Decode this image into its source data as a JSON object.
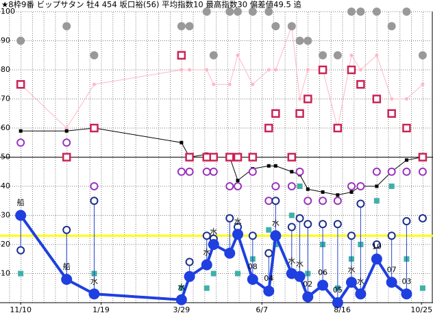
{
  "chart_data": {
    "type": "line",
    "title": "★8枠9番 ビップサタン 牡4 454 坂口裕(56) 平均指数10 最高指数30 偏差値49.5 追",
    "x": [
      0,
      40,
      64,
      140,
      147,
      162,
      168,
      182,
      189,
      202,
      216,
      222,
      236,
      243,
      250,
      263,
      276,
      288,
      296,
      310,
      323,
      336,
      350
    ],
    "xlim": [
      -18,
      359
    ],
    "xticks": [
      {
        "value": 0,
        "label": "11/10"
      },
      {
        "value": 70,
        "label": "1/19"
      },
      {
        "value": 140,
        "label": "3/29"
      },
      {
        "value": 210,
        "label": "6/7"
      },
      {
        "value": 280,
        "label": "8/16"
      },
      {
        "value": 349,
        "label": "10/25"
      }
    ],
    "ylim": [
      0,
      100
    ],
    "yticks": [
      10,
      20,
      30,
      40,
      50,
      60,
      70,
      80,
      90,
      100
    ],
    "grid": true,
    "reference_lines": [
      {
        "value": 23,
        "color": "#ffff00",
        "width": 3
      },
      {
        "value": 50,
        "color": "#000000",
        "width": 1
      }
    ],
    "series": [
      {
        "color": "#ffb6c6",
        "line": 1,
        "marker": "dot",
        "size": 2.5,
        "values": [
          75,
          60,
          75,
          80,
          80,
          80,
          75,
          75,
          85,
          75,
          80,
          80,
          95,
          70,
          80,
          80,
          60,
          85,
          80,
          85,
          70,
          70,
          75
        ]
      },
      {
        "color": "#000000",
        "line": 1,
        "marker": "square",
        "size": 2.5,
        "values": [
          59,
          59,
          60,
          55,
          50,
          51,
          50,
          50,
          42,
          46,
          47,
          47,
          45,
          44,
          39,
          38,
          37,
          38,
          40,
          40,
          45,
          49,
          50
        ]
      },
      {
        "color": "#999999",
        "line": 0,
        "marker": "dot",
        "size": 6,
        "values": [
          90,
          95,
          85,
          95,
          95,
          100,
          85,
          100,
          100,
          100,
          100,
          95,
          95,
          90,
          90,
          85,
          85,
          100,
          100,
          100,
          95,
          100,
          85
        ]
      },
      {
        "color": "#9933bb",
        "line": 0,
        "marker": "circle",
        "size": 5,
        "values": [
          55,
          55,
          40,
          45,
          45,
          45,
          45,
          40,
          40,
          45,
          35,
          40,
          40,
          45,
          35,
          35,
          35,
          40,
          40,
          45,
          45,
          45,
          45
        ]
      },
      {
        "color": "#cc2255",
        "line": 0,
        "marker": "hollow-square",
        "size": 5,
        "values": [
          75,
          50,
          60,
          85,
          50,
          50,
          50,
          50,
          50,
          50,
          60,
          65,
          50,
          65,
          70,
          80,
          60,
          80,
          75,
          70,
          65,
          60,
          50
        ]
      },
      {
        "color": "#40b0a8",
        "line": 0,
        "marker": "square",
        "size": 4,
        "values": [
          10,
          25,
          10,
          5,
          null,
          5,
          10,
          null,
          10,
          15,
          25,
          20,
          30,
          40,
          10,
          20,
          5,
          15,
          20,
          35,
          40,
          15,
          5
        ]
      },
      {
        "color": "#1a2d8c",
        "line": 0,
        "marker": "circle",
        "size": 5,
        "stem_to": 7,
        "values": [
          18,
          25,
          35,
          null,
          14,
          23,
          22,
          29,
          26,
          23,
          17,
          35,
          26,
          29,
          27,
          27,
          27,
          23,
          34,
          20,
          23,
          28,
          29
        ]
      },
      {
        "color": "#1f3fe0",
        "line": 4,
        "marker": "dot",
        "size": 8,
        "values": [
          30,
          8,
          3,
          1,
          9,
          13,
          20,
          17,
          23.5,
          8,
          4,
          23,
          10,
          9,
          2,
          6,
          0,
          7,
          3,
          15,
          7,
          3,
          null
        ]
      }
    ],
    "point_labels": [
      "船",
      "船",
      "水",
      "水",
      null,
      "水",
      "水",
      null,
      "水",
      "08",
      "04",
      "水",
      "水",
      "水",
      "02",
      "06",
      "05",
      "水",
      "水",
      "10",
      "07",
      "03",
      null
    ]
  }
}
